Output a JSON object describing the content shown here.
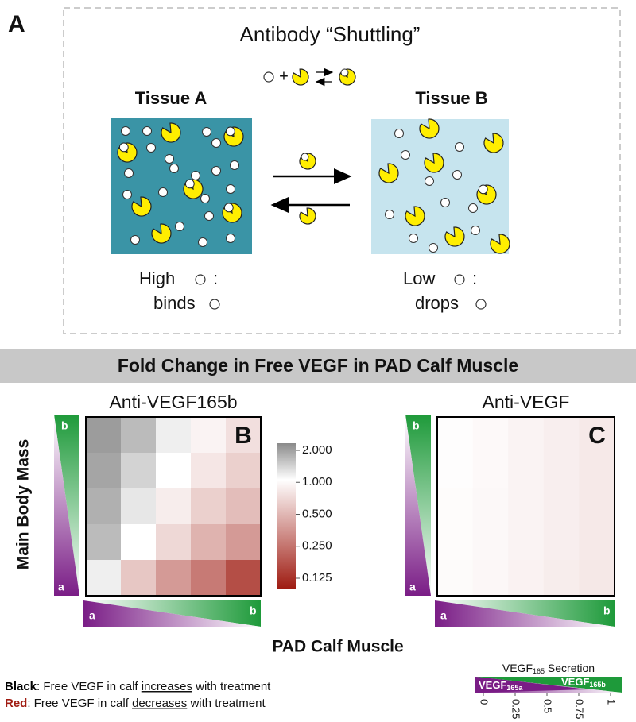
{
  "panel_a": {
    "letter": "A",
    "title": "Antibody “Shuttling”",
    "equation_plus": "+",
    "tissue_a": {
      "title": "Tissue A",
      "level": "High",
      "colon": ":",
      "action": "binds"
    },
    "tissue_b": {
      "title": "Tissue B",
      "level": "Low",
      "colon": ":",
      "action": "drops"
    }
  },
  "banner": "Fold Change in Free VEGF in PAD Calf Muscle",
  "y_axis_label": "Main Body Mass",
  "x_axis_label": "PAD Calf Muscle",
  "gradient_labels": {
    "low": "a",
    "high": "b"
  },
  "heatmaps": [
    {
      "title": "Anti-VEGF165b",
      "letter": "B",
      "values": [
        [
          1.8,
          1.5,
          1.1,
          0.9,
          0.75
        ],
        [
          1.7,
          1.3,
          1.0,
          0.8,
          0.65
        ],
        [
          1.6,
          1.15,
          0.85,
          0.65,
          0.55
        ],
        [
          1.5,
          1.0,
          0.7,
          0.5,
          0.4
        ],
        [
          1.1,
          0.6,
          0.4,
          0.3,
          0.2
        ]
      ]
    },
    {
      "title": "Anti-VEGF",
      "letter": "C",
      "values": [
        [
          0.98,
          0.95,
          0.9,
          0.86,
          0.82
        ],
        [
          0.98,
          0.95,
          0.9,
          0.86,
          0.82
        ],
        [
          0.97,
          0.94,
          0.9,
          0.86,
          0.82
        ],
        [
          0.97,
          0.94,
          0.9,
          0.86,
          0.82
        ],
        [
          0.96,
          0.93,
          0.89,
          0.85,
          0.81
        ]
      ]
    }
  ],
  "colorbar": {
    "log": true,
    "lim": [
      0.125,
      2
    ],
    "ticks": [
      {
        "value": 2,
        "label": "2.000"
      },
      {
        "value": 1,
        "label": "1.000"
      },
      {
        "value": 0.5,
        "label": "0.500"
      },
      {
        "value": 0.25,
        "label": "0.250"
      },
      {
        "value": 0.125,
        "label": "0.125"
      }
    ]
  },
  "secretion_legend": {
    "title": "VEGF",
    "title_sub": "165",
    "title_rest": " Secretion",
    "left": "VEGF",
    "left_sub": "165a",
    "right": "VEGF",
    "right_sub": "165b",
    "ticks": [
      0,
      0.25,
      0.5,
      0.75,
      1
    ],
    "lim": [
      0,
      1
    ]
  },
  "notes": [
    {
      "label": "Black",
      "before": ": Free VEGF in calf ",
      "emphasis": "increases",
      "after": " with treatment"
    },
    {
      "label": "Red",
      "before": ": Free VEGF in calf ",
      "emphasis": "decreases",
      "after": " with treatment"
    }
  ]
}
